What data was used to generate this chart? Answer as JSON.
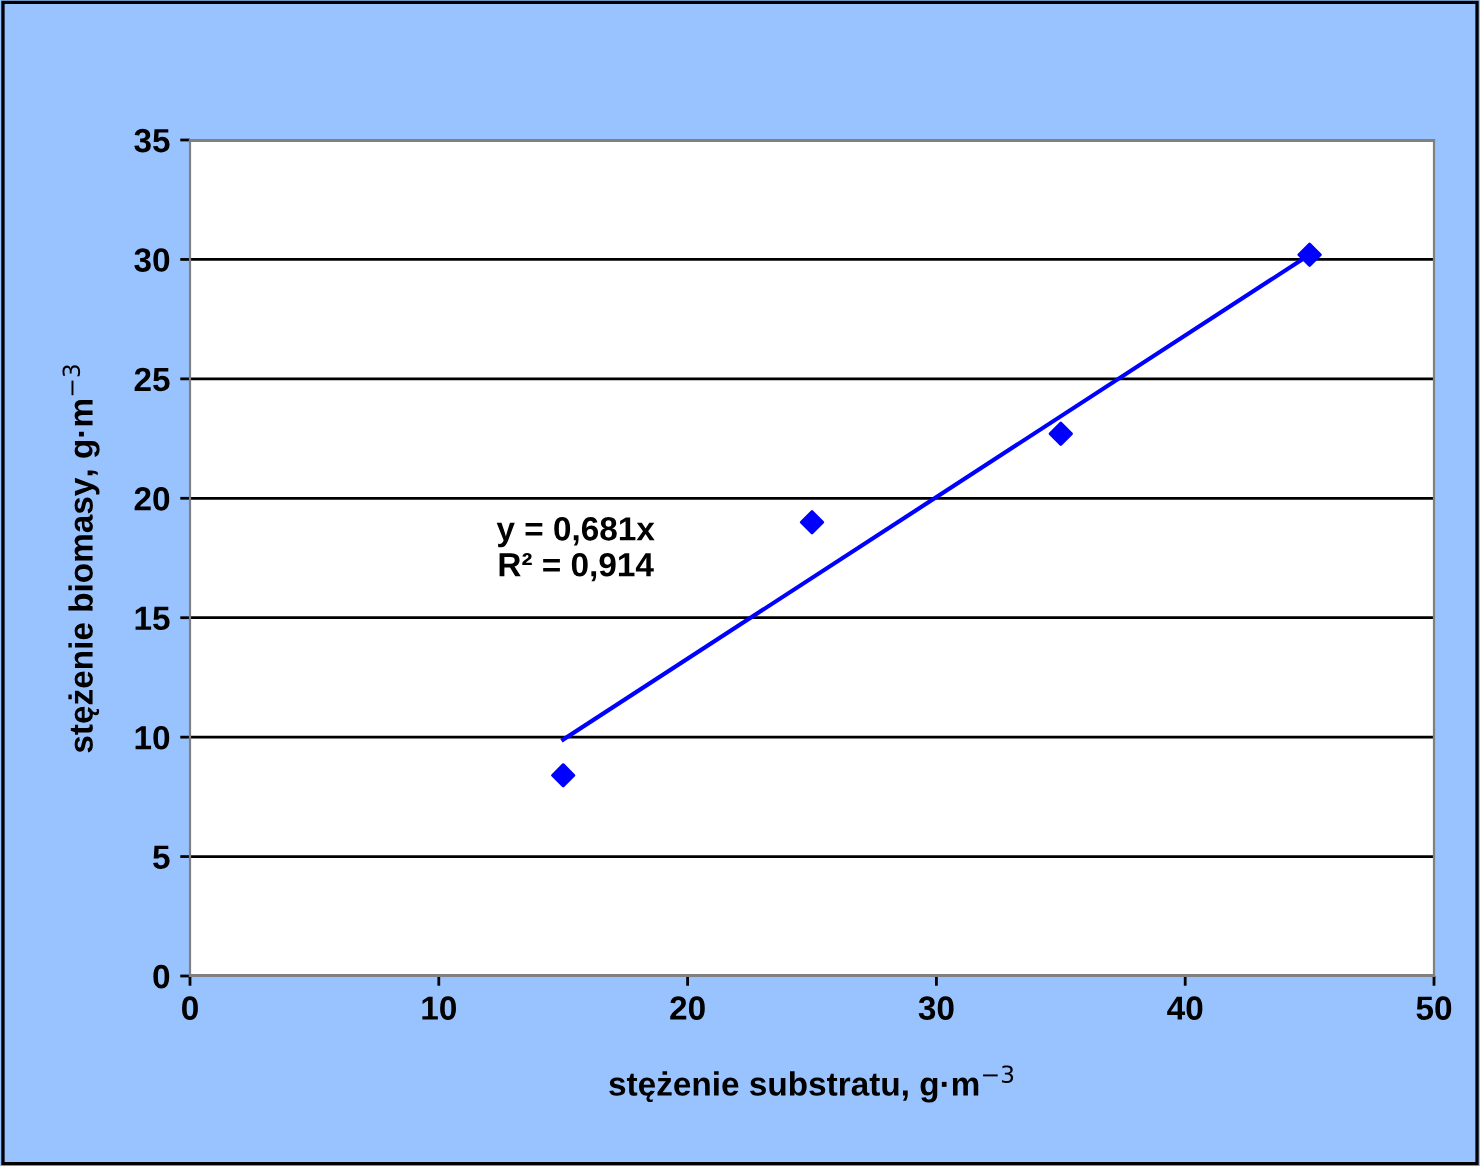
{
  "chart_data": {
    "type": "scatter",
    "xlabel": "stężenie substratu, g·m$^{−3}$",
    "ylabel": "stężenie biomasy, g·m$^{−3}$",
    "x": [
      15,
      25,
      35,
      45
    ],
    "series": [
      {
        "type": "scatter",
        "color": "#0000ff",
        "marker": "diamond",
        "values": [
          8.4,
          19.0,
          22.7,
          30.2
        ]
      },
      {
        "type": "line",
        "color": "#0000ff",
        "marker": "none",
        "line_style": "solid",
        "x": [
          15,
          45
        ],
        "values": [
          9.9,
          30.2
        ]
      }
    ],
    "xlim": [
      0,
      50
    ],
    "xticks": [
      0,
      10,
      20,
      30,
      40,
      50
    ],
    "ylim": [
      0,
      35
    ],
    "yticks": [
      0,
      5,
      10,
      15,
      20,
      25,
      30,
      35
    ],
    "grid": "y",
    "legend": false,
    "annotations": [
      "y = 0,681x\nR² = 0,914"
    ]
  }
}
